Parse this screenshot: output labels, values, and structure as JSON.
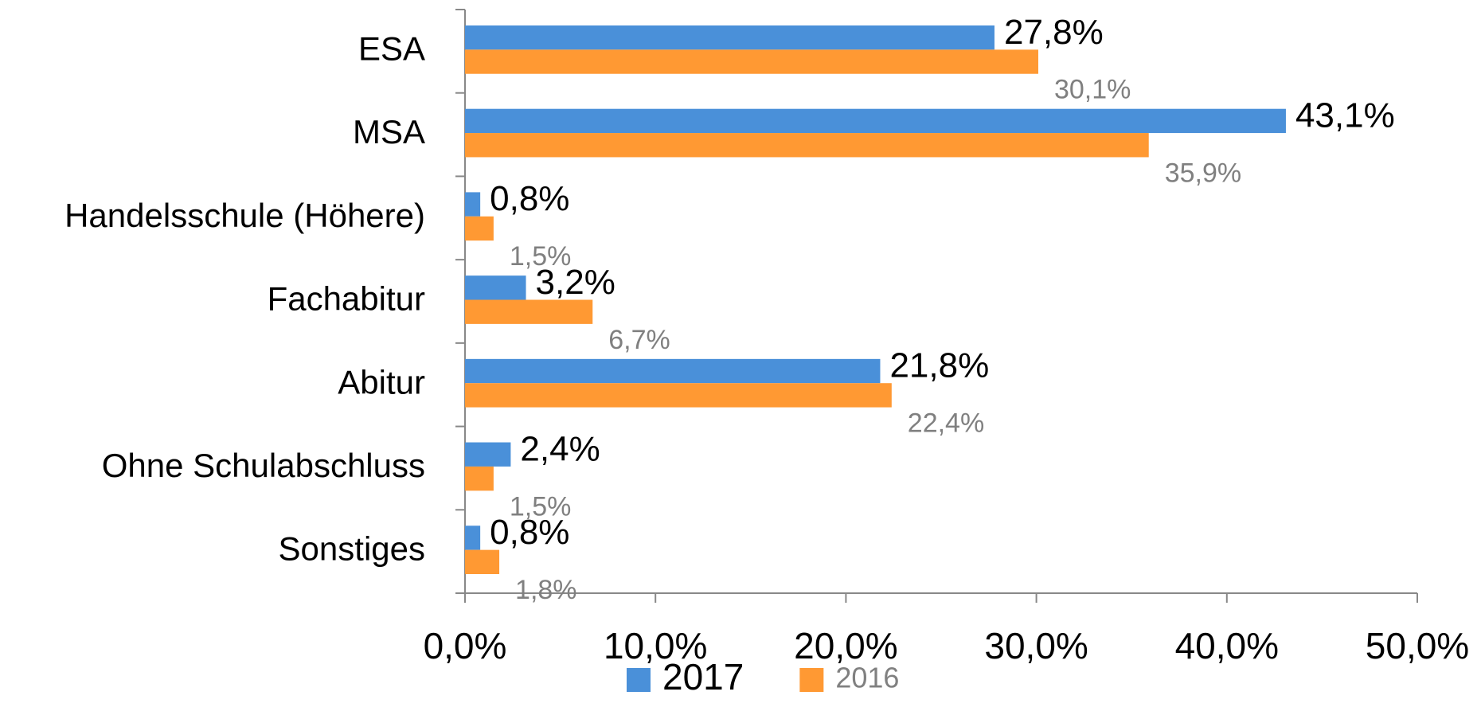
{
  "chart_data": {
    "type": "bar",
    "orientation": "horizontal",
    "categories": [
      "ESA",
      "MSA",
      "Handelsschule (Höhere)",
      "Fachabitur",
      "Abitur",
      "Ohne Schulabschluss",
      "Sonstiges"
    ],
    "series": [
      {
        "name": "2017",
        "color": "#4a90d9",
        "values": [
          27.8,
          43.1,
          0.8,
          3.2,
          21.8,
          2.4,
          0.8
        ],
        "value_labels": [
          "27,8%",
          "43,1%",
          "0,8%",
          "3,2%",
          "21,8%",
          "2,4%",
          "0,8%"
        ]
      },
      {
        "name": "2016",
        "color": "#ff9933",
        "values": [
          30.1,
          35.9,
          1.5,
          6.7,
          22.4,
          1.5,
          1.8
        ],
        "value_labels": [
          "30,1%",
          "35,9%",
          "1,5%",
          "6,7%",
          "22,4%",
          "1,5%",
          "1,8%"
        ]
      }
    ],
    "xlim": [
      0,
      50
    ],
    "xticks": [
      {
        "value": 0,
        "label": "0,0%"
      },
      {
        "value": 10,
        "label": "10,0%"
      },
      {
        "value": 20,
        "label": "20,0%"
      },
      {
        "value": 30,
        "label": "30,0%"
      },
      {
        "value": 40,
        "label": "40,0%"
      },
      {
        "value": 50,
        "label": "50,0%"
      }
    ],
    "grid": false,
    "legend": "bottom"
  }
}
